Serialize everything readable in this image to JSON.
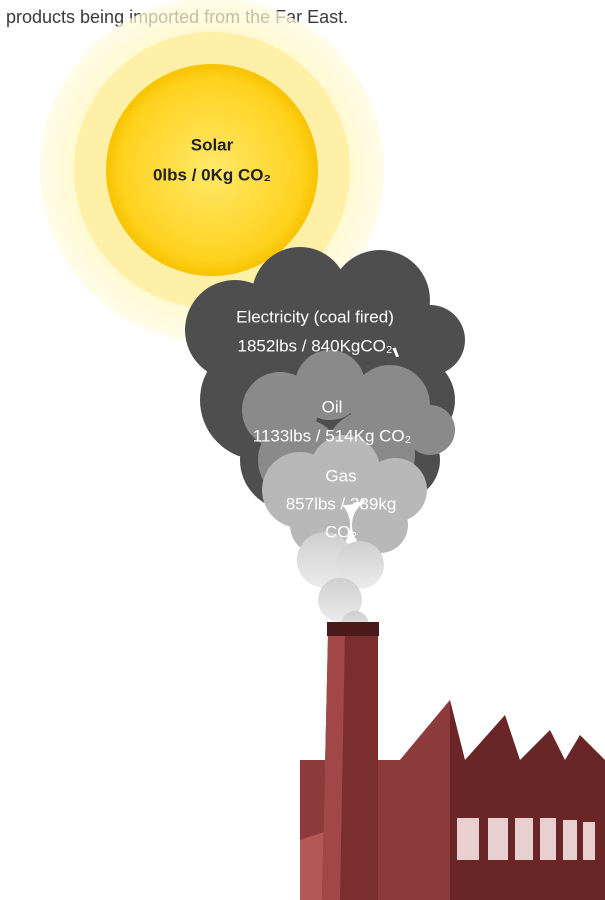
{
  "intro": "products being imported from the Far East.",
  "solar": {
    "name": "Solar",
    "amount": "0lbs / 0Kg CO₂"
  },
  "electricity": {
    "name": "Electricity (coal fired)",
    "amount": "1852lbs / 840KgCO₂"
  },
  "oil": {
    "name": "Oil",
    "amount": "1133lbs / 514Kg CO₂"
  },
  "gas": {
    "name": "Gas",
    "amount": "857lbs / 389kg",
    "unit": "CO₂"
  }
}
